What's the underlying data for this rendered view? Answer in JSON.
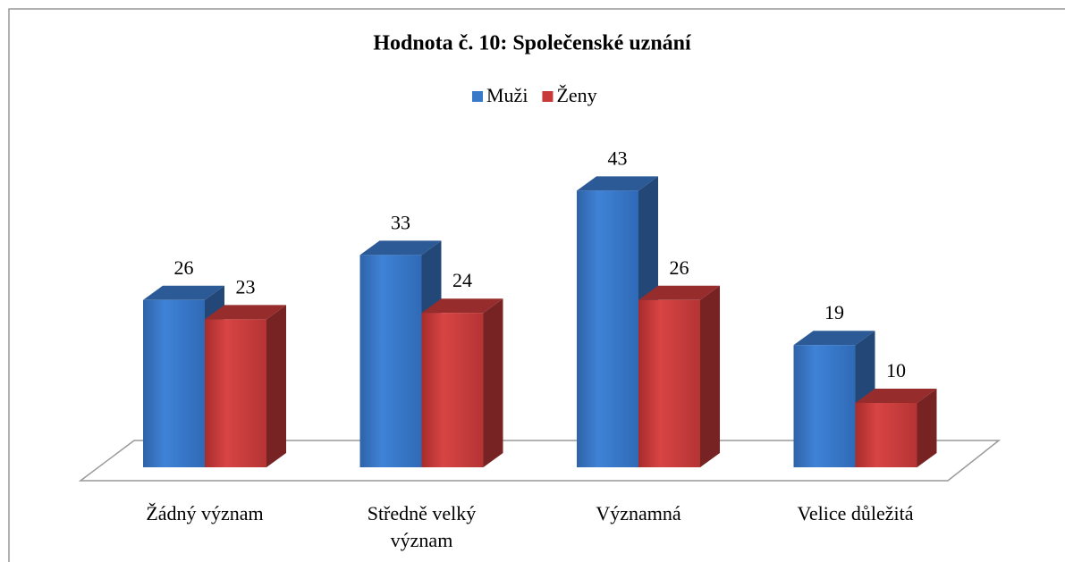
{
  "chart_data": {
    "type": "bar3d",
    "title": "Hodnota č. 10: Společenské uznání",
    "categories": [
      "Žádný význam",
      "Středně velký význam",
      "Významná",
      "Velice důležitá"
    ],
    "series": [
      {
        "name": "Muži",
        "color": "#3a78c8",
        "values": [
          26,
          33,
          43,
          19
        ]
      },
      {
        "name": "Ženy",
        "color": "#c83a3a",
        "values": [
          23,
          24,
          26,
          10
        ]
      }
    ],
    "legend": "top"
  }
}
